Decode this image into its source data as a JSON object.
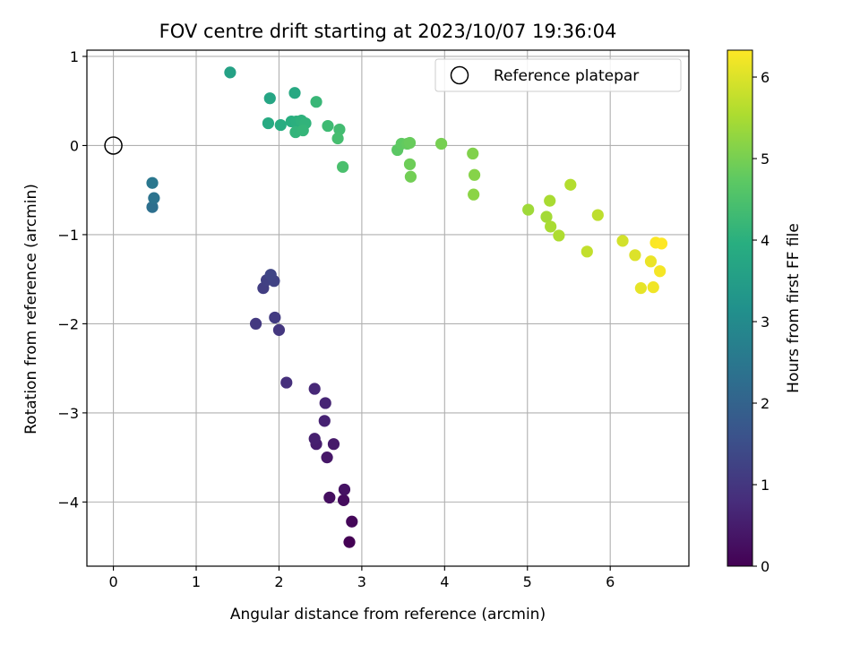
{
  "chart_data": {
    "type": "scatter",
    "title": "FOV centre drift starting at 2023/10/07 19:36:04",
    "xlabel": "Angular distance from reference (arcmin)",
    "ylabel": "Rotation from reference (arcmin)",
    "xlim": [
      -0.32,
      6.95
    ],
    "ylim": [
      -4.72,
      1.07
    ],
    "xticks": [
      0,
      1,
      2,
      3,
      4,
      5,
      6
    ],
    "yticks": [
      1,
      0,
      -1,
      -2,
      -3,
      -4
    ],
    "grid": true,
    "legend_position": "top-right",
    "reference_point": {
      "label": "Reference platepar",
      "x": 0,
      "y": 0
    },
    "colorbar": {
      "label": "Hours from first FF file",
      "colormap": "viridis",
      "range": [
        0,
        6.33
      ],
      "ticks": [
        0,
        1,
        2,
        3,
        4,
        5,
        6
      ]
    },
    "points": [
      {
        "x": 2.85,
        "y": -4.45,
        "hours": 0.0
      },
      {
        "x": 2.88,
        "y": -4.22,
        "hours": 0.1
      },
      {
        "x": 2.78,
        "y": -3.98,
        "hours": 0.2
      },
      {
        "x": 2.61,
        "y": -3.95,
        "hours": 0.25
      },
      {
        "x": 2.79,
        "y": -3.86,
        "hours": 0.3
      },
      {
        "x": 2.58,
        "y": -3.5,
        "hours": 0.4
      },
      {
        "x": 2.66,
        "y": -3.35,
        "hours": 0.45
      },
      {
        "x": 2.45,
        "y": -3.35,
        "hours": 0.5
      },
      {
        "x": 2.43,
        "y": -3.29,
        "hours": 0.55
      },
      {
        "x": 2.55,
        "y": -3.09,
        "hours": 0.6
      },
      {
        "x": 2.56,
        "y": -2.89,
        "hours": 0.65
      },
      {
        "x": 2.43,
        "y": -2.73,
        "hours": 0.7
      },
      {
        "x": 2.09,
        "y": -2.66,
        "hours": 0.85
      },
      {
        "x": 2.0,
        "y": -2.07,
        "hours": 1.0
      },
      {
        "x": 1.72,
        "y": -2.0,
        "hours": 1.05
      },
      {
        "x": 1.95,
        "y": -1.93,
        "hours": 1.1
      },
      {
        "x": 1.81,
        "y": -1.6,
        "hours": 1.15
      },
      {
        "x": 1.85,
        "y": -1.51,
        "hours": 1.2
      },
      {
        "x": 1.94,
        "y": -1.52,
        "hours": 1.25
      },
      {
        "x": 1.9,
        "y": -1.45,
        "hours": 1.3
      },
      {
        "x": 0.47,
        "y": -0.69,
        "hours": 2.3
      },
      {
        "x": 0.49,
        "y": -0.59,
        "hours": 2.4
      },
      {
        "x": 0.47,
        "y": -0.42,
        "hours": 2.5
      },
      {
        "x": 1.41,
        "y": 0.82,
        "hours": 3.6
      },
      {
        "x": 1.89,
        "y": 0.53,
        "hours": 3.7
      },
      {
        "x": 2.19,
        "y": 0.59,
        "hours": 3.8
      },
      {
        "x": 1.87,
        "y": 0.25,
        "hours": 3.85
      },
      {
        "x": 2.02,
        "y": 0.23,
        "hours": 3.9
      },
      {
        "x": 2.15,
        "y": 0.27,
        "hours": 3.95
      },
      {
        "x": 2.21,
        "y": 0.27,
        "hours": 4.0
      },
      {
        "x": 2.27,
        "y": 0.28,
        "hours": 4.05
      },
      {
        "x": 2.32,
        "y": 0.25,
        "hours": 4.1
      },
      {
        "x": 2.2,
        "y": 0.15,
        "hours": 4.12
      },
      {
        "x": 2.29,
        "y": 0.17,
        "hours": 4.15
      },
      {
        "x": 2.45,
        "y": 0.49,
        "hours": 4.2
      },
      {
        "x": 2.59,
        "y": 0.22,
        "hours": 4.3
      },
      {
        "x": 2.73,
        "y": 0.18,
        "hours": 4.35
      },
      {
        "x": 2.71,
        "y": 0.08,
        "hours": 4.4
      },
      {
        "x": 2.77,
        "y": -0.24,
        "hours": 4.45
      },
      {
        "x": 3.43,
        "y": -0.05,
        "hours": 4.7
      },
      {
        "x": 3.48,
        "y": 0.02,
        "hours": 4.75
      },
      {
        "x": 3.55,
        "y": 0.02,
        "hours": 4.8
      },
      {
        "x": 3.58,
        "y": 0.03,
        "hours": 4.85
      },
      {
        "x": 3.58,
        "y": -0.21,
        "hours": 4.9
      },
      {
        "x": 3.59,
        "y": -0.35,
        "hours": 4.95
      },
      {
        "x": 3.96,
        "y": 0.02,
        "hours": 5.0
      },
      {
        "x": 4.34,
        "y": -0.09,
        "hours": 5.1
      },
      {
        "x": 4.36,
        "y": -0.33,
        "hours": 5.15
      },
      {
        "x": 4.35,
        "y": -0.55,
        "hours": 5.2
      },
      {
        "x": 5.01,
        "y": -0.72,
        "hours": 5.4
      },
      {
        "x": 5.27,
        "y": -0.62,
        "hours": 5.5
      },
      {
        "x": 5.52,
        "y": -0.44,
        "hours": 5.6
      },
      {
        "x": 5.23,
        "y": -0.8,
        "hours": 5.45
      },
      {
        "x": 5.28,
        "y": -0.91,
        "hours": 5.5
      },
      {
        "x": 5.38,
        "y": -1.01,
        "hours": 5.55
      },
      {
        "x": 5.85,
        "y": -0.78,
        "hours": 5.7
      },
      {
        "x": 5.72,
        "y": -1.19,
        "hours": 5.75
      },
      {
        "x": 6.15,
        "y": -1.07,
        "hours": 5.9
      },
      {
        "x": 6.3,
        "y": -1.23,
        "hours": 6.0
      },
      {
        "x": 6.37,
        "y": -1.6,
        "hours": 6.1
      },
      {
        "x": 6.49,
        "y": -1.3,
        "hours": 6.15
      },
      {
        "x": 6.52,
        "y": -1.59,
        "hours": 6.2
      },
      {
        "x": 6.6,
        "y": -1.41,
        "hours": 6.25
      },
      {
        "x": 6.55,
        "y": -1.09,
        "hours": 6.3
      },
      {
        "x": 6.62,
        "y": -1.1,
        "hours": 6.33
      }
    ]
  }
}
